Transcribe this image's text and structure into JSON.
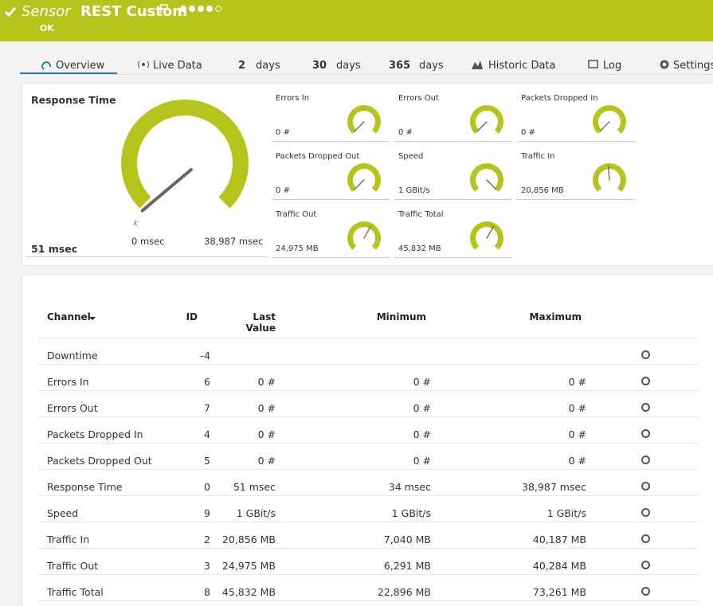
{
  "header": {
    "prefix": "Sensor",
    "title": "REST Custom",
    "status": "OK"
  },
  "tabs": [
    {
      "label": "Overview"
    },
    {
      "label": "Live Data"
    },
    {
      "number": "2",
      "label": "days"
    },
    {
      "number": "30",
      "label": "days"
    },
    {
      "number": "365",
      "label": "days"
    },
    {
      "label": "Historic Data"
    },
    {
      "label": "Log"
    },
    {
      "label": "Settings"
    }
  ],
  "main_gauge": {
    "label": "Response Time",
    "value": "51 msec",
    "marker": "x̄",
    "min": "0 msec",
    "max": "38,987 msec"
  },
  "gauges": [
    {
      "label": "Errors In",
      "value": "0 #"
    },
    {
      "label": "Errors Out",
      "value": "0 #"
    },
    {
      "label": "Packets Dropped In",
      "value": "0 #"
    },
    {
      "label": "Packets Dropped Out",
      "value": "0 #"
    },
    {
      "label": "Speed",
      "value": "1 GBit/s"
    },
    {
      "label": "Traffic In",
      "value": "20,856 MB"
    },
    {
      "label": "Traffic Out",
      "value": "24,975 MB"
    },
    {
      "label": "Traffic Total",
      "value": "45,832 MB"
    }
  ],
  "table": {
    "columns": [
      "Channel",
      "ID",
      "Last Value",
      "Minimum",
      "Maximum"
    ],
    "rows": [
      {
        "channel": "Downtime",
        "id": -4
      },
      {
        "channel": "Errors In",
        "id": 6,
        "last": "0 #",
        "min": "0 #",
        "max": "0 #"
      },
      {
        "channel": "Errors Out",
        "id": 7,
        "last": "0 #",
        "min": "0 #",
        "max": "0 #"
      },
      {
        "channel": "Packets Dropped In",
        "id": 4,
        "last": "0 #",
        "min": "0 #",
        "max": "0 #"
      },
      {
        "channel": "Packets Dropped Out",
        "id": 5,
        "last": "0 #",
        "min": "0 #",
        "max": "0 #"
      },
      {
        "channel": "Response Time",
        "id": 0,
        "last": "51 msec",
        "min": "34 msec",
        "max": "38,987 msec"
      },
      {
        "channel": "Speed",
        "id": 9,
        "last": "1 GBit/s",
        "min": "1 GBit/s",
        "max": "1 GBit/s"
      },
      {
        "channel": "Traffic In",
        "id": 2,
        "last": "20,856 MB",
        "min": "7,040 MB",
        "max": "40,187 MB"
      },
      {
        "channel": "Traffic Out",
        "id": 3,
        "last": "24,975 MB",
        "min": "6,291 MB",
        "max": "40,284 MB"
      },
      {
        "channel": "Traffic Total",
        "id": 8,
        "last": "45,832 MB",
        "min": "22,896 MB",
        "max": "73,261 MB"
      }
    ]
  }
}
